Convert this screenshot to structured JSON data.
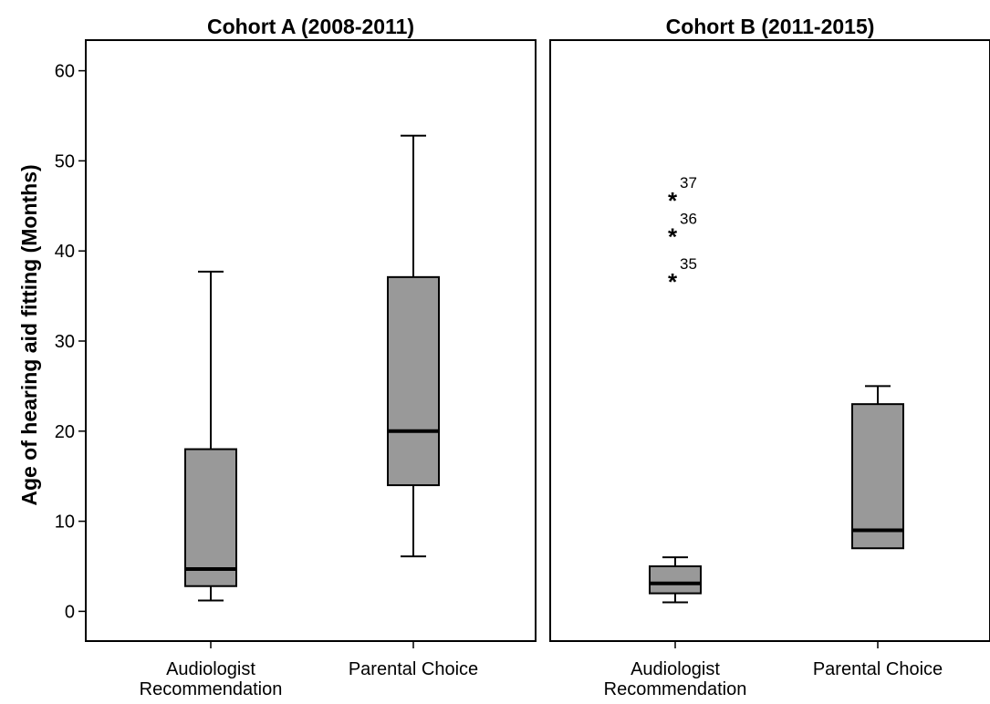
{
  "chart_data": {
    "type": "box",
    "ylabel": "Age of hearing aid fitting (Months)",
    "ylim": [
      -3.3,
      63.4
    ],
    "y_ticks": [
      0,
      10,
      20,
      30,
      40,
      50,
      60
    ],
    "box_fill": "#999999",
    "panels": [
      {
        "title": "Cohort A (2008-2011)",
        "categories": [
          {
            "label": [
              "Audiologist",
              "Recommendation"
            ],
            "whisker_low": 1.2,
            "q1": 2.8,
            "median": 4.7,
            "q3": 18.0,
            "whisker_high": 37.7,
            "outliers": []
          },
          {
            "label": [
              "Parental Choice"
            ],
            "whisker_low": 6.1,
            "q1": 14.0,
            "median": 20.0,
            "q3": 37.1,
            "whisker_high": 52.8,
            "outliers": []
          }
        ]
      },
      {
        "title": "Cohort B (2011-2015)",
        "categories": [
          {
            "label": [
              "Audiologist",
              "Recommendation"
            ],
            "whisker_low": 1.0,
            "q1": 2.0,
            "median": 3.1,
            "q3": 5.0,
            "whisker_high": 6.0,
            "outliers": [
              {
                "value": 46.0,
                "label": "37"
              },
              {
                "value": 42.0,
                "label": "36"
              },
              {
                "value": 37.0,
                "label": "35"
              }
            ]
          },
          {
            "label": [
              "Parental Choice"
            ],
            "whisker_low": 7.0,
            "q1": 7.0,
            "median": 9.0,
            "q3": 23.0,
            "whisker_high": 25.0,
            "outliers": []
          }
        ]
      }
    ]
  }
}
